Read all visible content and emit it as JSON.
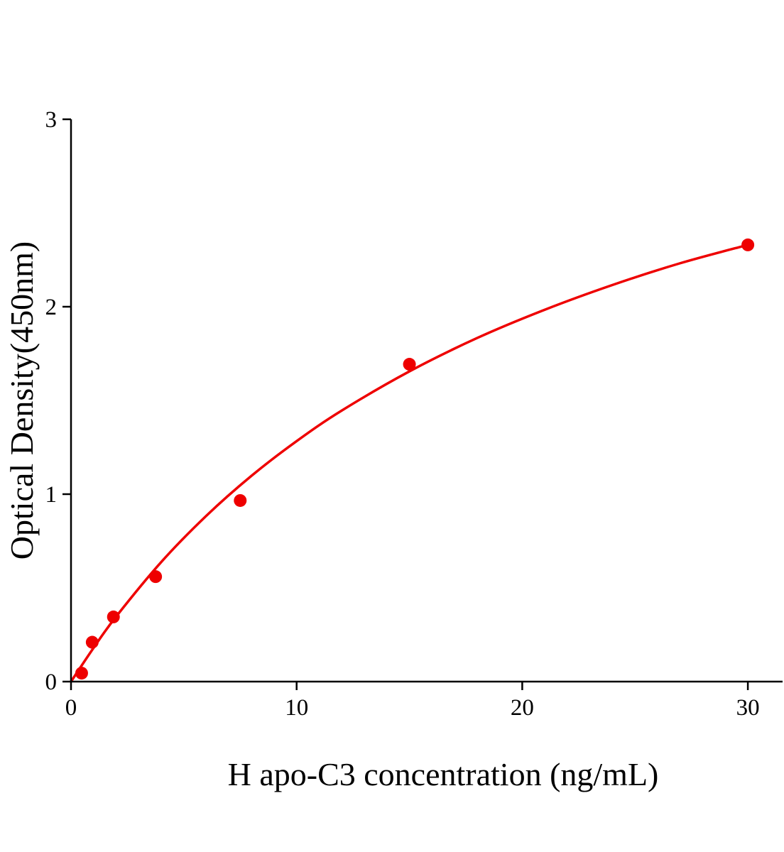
{
  "chart_data": {
    "type": "scatter",
    "title": "",
    "xlabel": "H apo-C3 concentration (ng/mL)",
    "ylabel": "Optical Density(450nm)",
    "xlim": [
      0,
      31.5
    ],
    "ylim": [
      0,
      3
    ],
    "xticks": [
      "0",
      "10",
      "20",
      "30"
    ],
    "yticks": [
      "0",
      "1",
      "2",
      "3"
    ],
    "grid": false,
    "color": "#ee0000",
    "points": [
      {
        "x": 0.47,
        "y": 0.045
      },
      {
        "x": 0.94,
        "y": 0.21
      },
      {
        "x": 1.88,
        "y": 0.345
      },
      {
        "x": 3.75,
        "y": 0.56
      },
      {
        "x": 7.5,
        "y": 0.966
      },
      {
        "x": 15,
        "y": 1.693
      },
      {
        "x": 30,
        "y": 2.33
      }
    ],
    "fit_curve": [
      {
        "x": 0,
        "y": 0
      },
      {
        "x": 1,
        "y": 0.18
      },
      {
        "x": 2,
        "y": 0.347
      },
      {
        "x": 4,
        "y": 0.638
      },
      {
        "x": 6,
        "y": 0.885
      },
      {
        "x": 8,
        "y": 1.098
      },
      {
        "x": 10,
        "y": 1.283
      },
      {
        "x": 12,
        "y": 1.446
      },
      {
        "x": 15,
        "y": 1.655
      },
      {
        "x": 18,
        "y": 1.833
      },
      {
        "x": 21,
        "y": 1.984
      },
      {
        "x": 24,
        "y": 2.116
      },
      {
        "x": 27,
        "y": 2.232
      },
      {
        "x": 30,
        "y": 2.33
      }
    ]
  }
}
